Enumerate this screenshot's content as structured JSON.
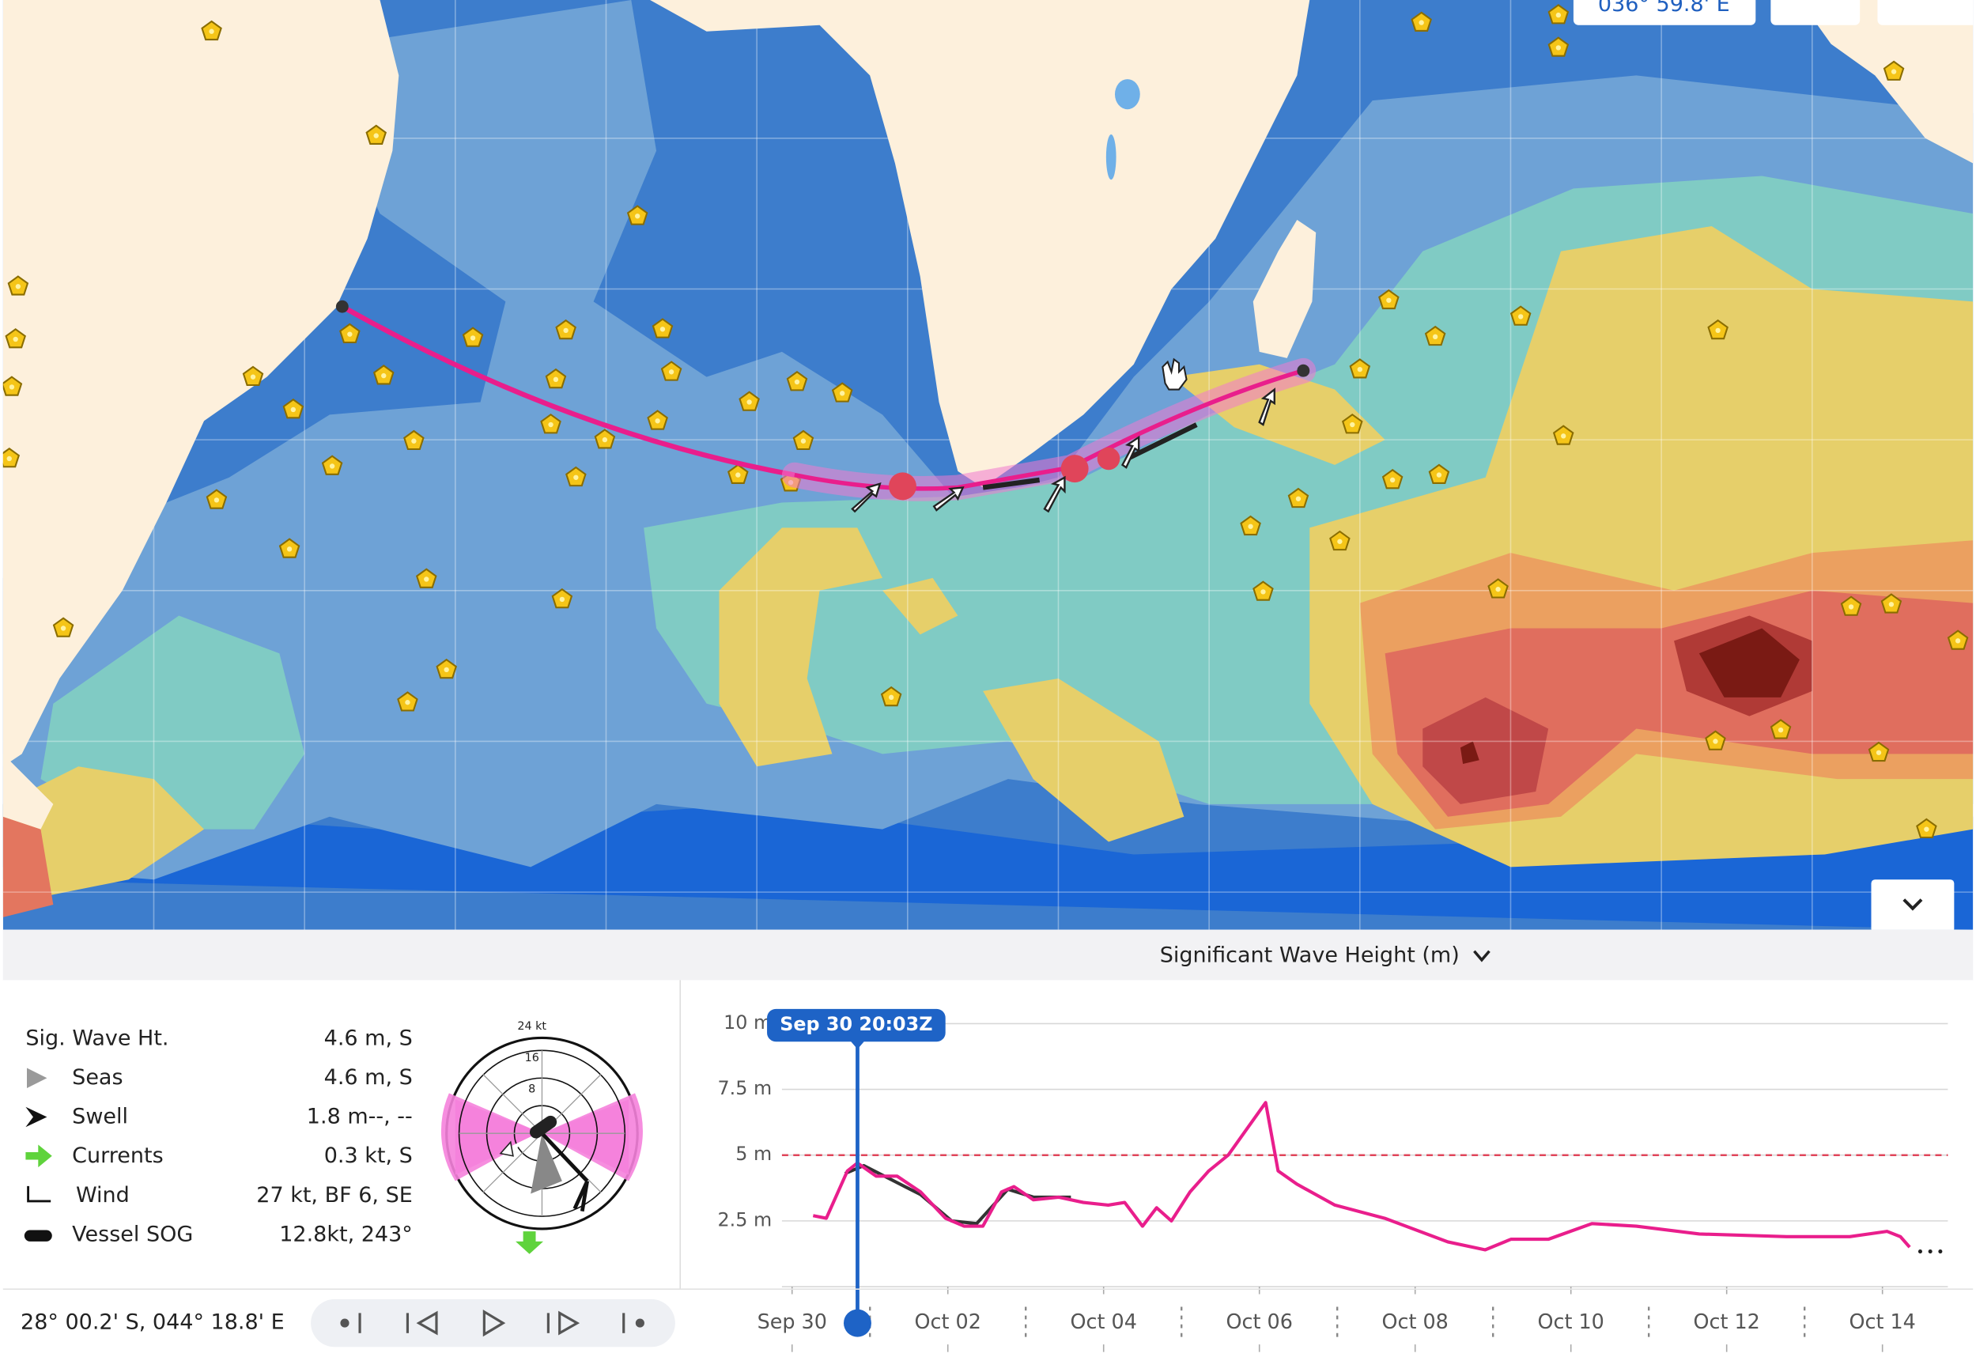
{
  "map": {
    "coordinate_badge": "036° 59.8' E"
  },
  "panel": {
    "title": "Significant Wave Height (m)"
  },
  "readout": {
    "rows": [
      {
        "label": "Sig. Wave Ht.",
        "value": "4.6 m, S"
      },
      {
        "label": "Seas",
        "value": "4.6 m, S"
      },
      {
        "label": "Swell",
        "value": "1.8 m--, --"
      },
      {
        "label": "Currents",
        "value": "0.3 kt, S"
      },
      {
        "label": "Wind",
        "value": "27 kt, BF 6, SE"
      },
      {
        "label": "Vessel SOG",
        "value": "12.8kt, 243°"
      }
    ]
  },
  "compass": {
    "rings": [
      "24 kt",
      "16",
      "8"
    ]
  },
  "position": "28° 00.2' S, 044° 18.8' E",
  "chart_data": {
    "type": "line",
    "xlim": [
      -0.13,
      14.84
    ],
    "xticks": [
      {
        "value": 0,
        "label": "Sep 30"
      },
      {
        "value": 2,
        "label": "Oct 02"
      },
      {
        "value": 4,
        "label": "Oct 04"
      },
      {
        "value": 6,
        "label": "Oct 06"
      },
      {
        "value": 8,
        "label": "Oct 08"
      },
      {
        "value": 10,
        "label": "Oct 10"
      },
      {
        "value": 12,
        "label": "Oct 12"
      },
      {
        "value": 14,
        "label": "Oct 14"
      }
    ],
    "ylim": [
      0,
      10.7
    ],
    "yticks": [
      {
        "value": 2.5,
        "label": "2.5 m"
      },
      {
        "value": 5,
        "label": "5 m"
      },
      {
        "value": 7.5,
        "label": "7.5 m"
      },
      {
        "value": 10,
        "label": "10 m"
      }
    ],
    "threshold": 5,
    "threshold_color": "#e0455a",
    "cursor": {
      "value": 0.84,
      "label": "Sep 30 20:03Z"
    },
    "series": [
      {
        "color": "#333333",
        "x": [
          0.68,
          0.92,
          1.32,
          1.65,
          2.05,
          2.37,
          2.77,
          3.1,
          3.58
        ],
        "values": [
          4.3,
          4.6,
          4.0,
          3.5,
          2.5,
          2.4,
          3.7,
          3.4,
          3.4
        ]
      },
      {
        "color": "#e91e8c",
        "x": [
          0.27,
          0.44,
          0.71,
          0.84,
          1.08,
          1.35,
          1.65,
          1.97,
          2.21,
          2.45,
          2.69,
          2.85,
          3.1,
          3.42,
          3.74,
          4.06,
          4.27,
          4.5,
          4.68,
          4.87,
          5.11,
          5.35,
          5.6,
          5.84,
          6.08,
          6.24,
          6.48,
          6.97,
          7.61,
          8.42,
          8.9,
          9.23,
          9.71,
          10.27,
          10.84,
          11.65,
          12.77,
          13.58,
          14.06,
          14.23,
          14.35
        ],
        "values": [
          2.7,
          2.6,
          4.4,
          4.7,
          4.2,
          4.2,
          3.6,
          2.6,
          2.3,
          2.3,
          3.6,
          3.8,
          3.3,
          3.4,
          3.2,
          3.1,
          3.2,
          2.3,
          3.0,
          2.5,
          3.6,
          4.4,
          5.0,
          6.0,
          7.0,
          4.4,
          3.9,
          3.1,
          2.6,
          1.7,
          1.4,
          1.8,
          1.8,
          2.4,
          2.3,
          2.0,
          1.9,
          1.9,
          2.1,
          1.9,
          1.5
        ]
      }
    ]
  }
}
